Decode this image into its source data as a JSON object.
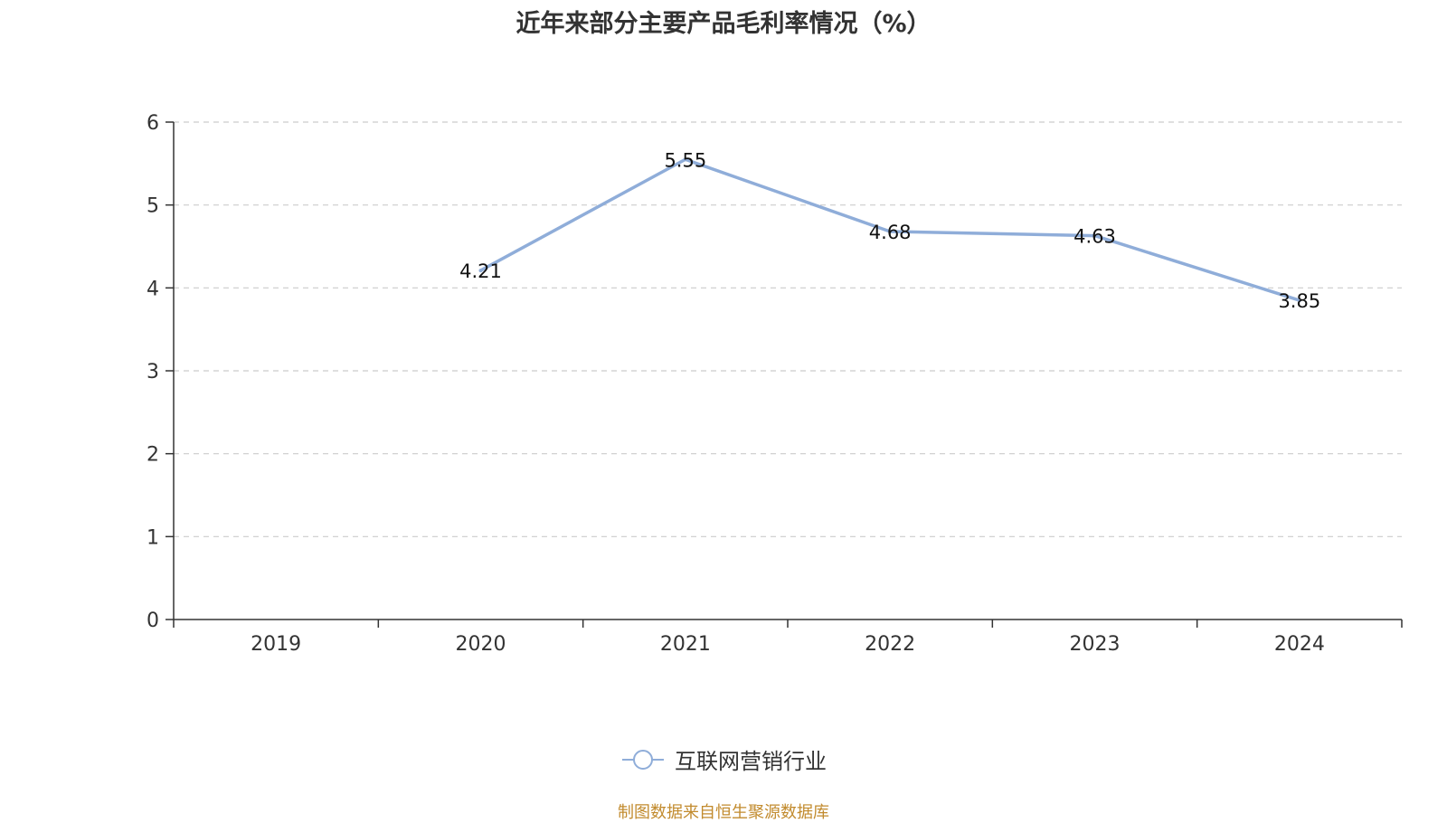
{
  "chart_data": {
    "type": "line",
    "title": "近年来部分主要产品毛利率情况（%）",
    "categories": [
      "2019",
      "2020",
      "2021",
      "2022",
      "2023",
      "2024"
    ],
    "series": [
      {
        "name": "互联网营销行业",
        "values": [
          null,
          4.21,
          5.55,
          4.68,
          4.63,
          3.85
        ]
      }
    ],
    "ylim": [
      0,
      6
    ],
    "yticks": [
      0,
      1,
      2,
      3,
      4,
      5,
      6
    ],
    "grid": true,
    "legend_position": "bottom"
  },
  "colors": {
    "series": "#8fadd9",
    "axis": "#333333",
    "grid": "#cccccc",
    "source": "#c28b2e"
  },
  "source_note": "制图数据来自恒生聚源数据库"
}
